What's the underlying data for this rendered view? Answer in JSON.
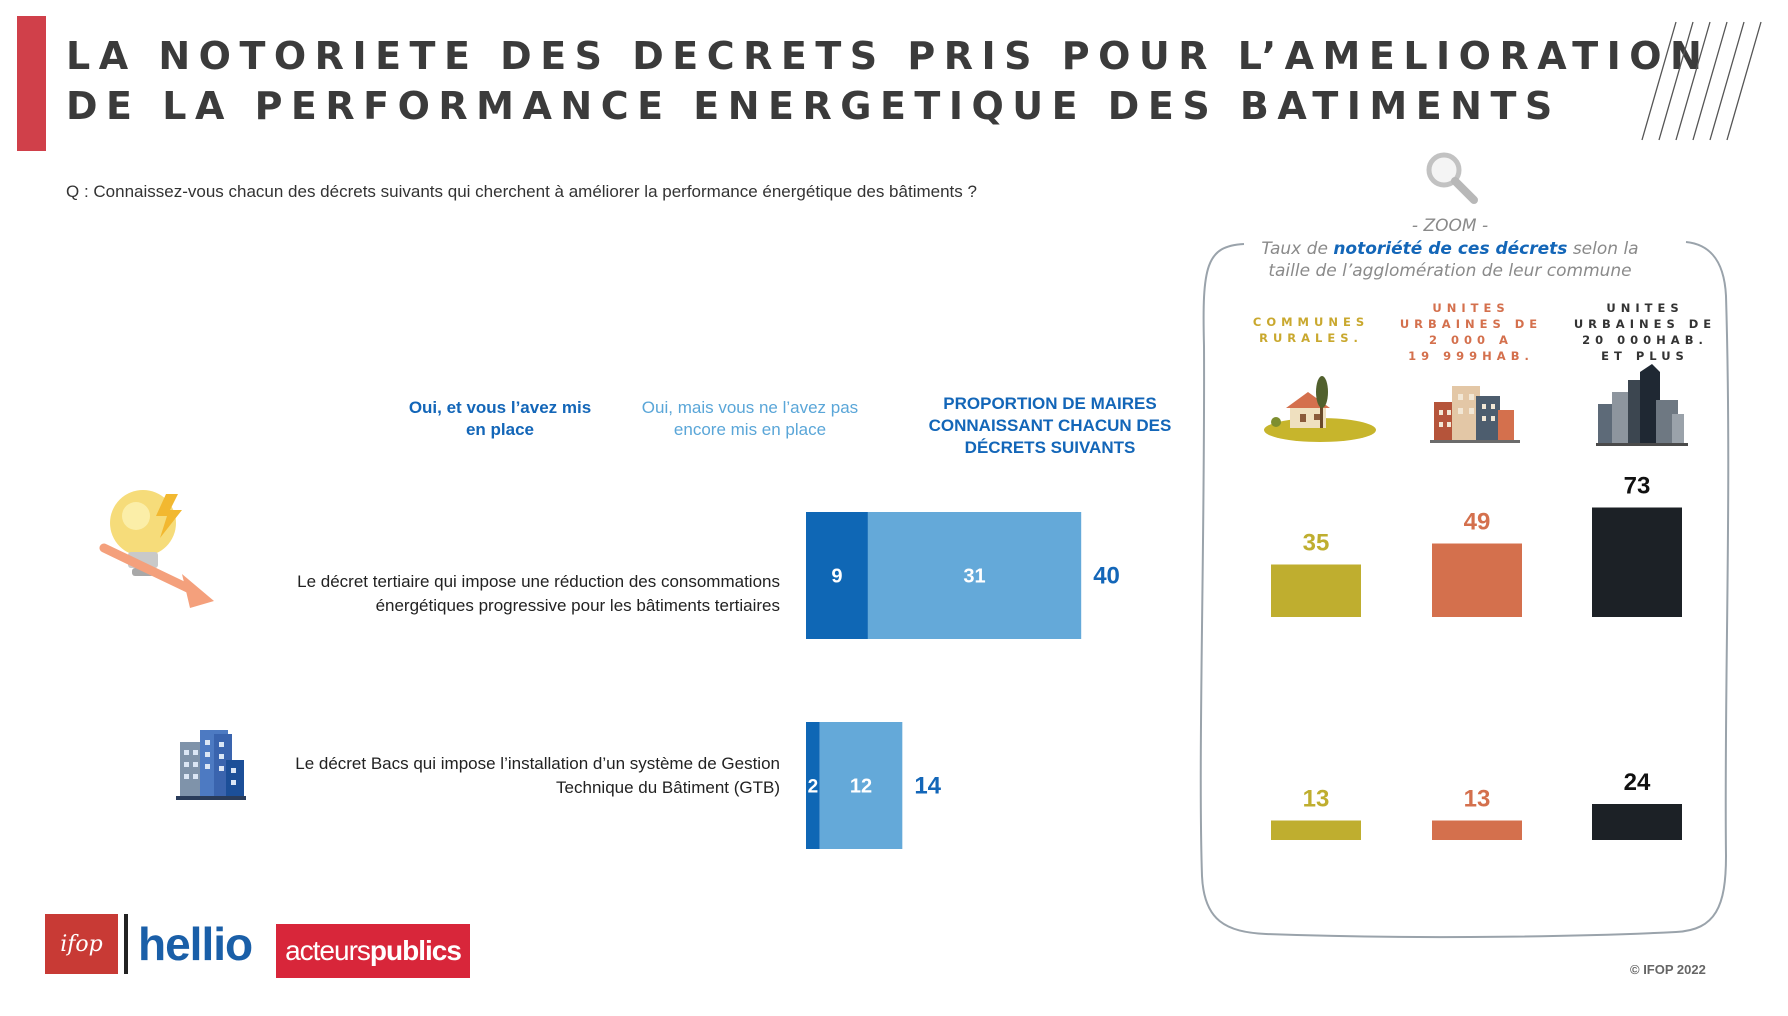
{
  "header": {
    "title_line1": "LA NOTORIETE DES DECRETS PRIS POUR L’AMELIORATION",
    "title_line2": "DE LA PERFORMANCE ENERGETIQUE DES BATIMENTS"
  },
  "question": "Q : Connaissez-vous chacun des décrets suivants qui cherchent à améliorer la performance énergétique des bâtiments ?",
  "columns": {
    "col1": "Oui, et vous l’avez mis en place",
    "col2": "Oui, mais vous ne l’avez pas encore mis en place",
    "col3": "PROPORTION DE MAIRES CONNAISSANT CHACUN DES DÉCRETS SUIVANTS"
  },
  "rows": [
    {
      "label_line1": "Le décret tertiaire qui impose une réduction des consommations",
      "label_line2": "énergétiques progressive pour les bâtiments tertiaires",
      "icon": "lightbulb-icon"
    },
    {
      "label_line1": "Le décret Bacs qui impose l’installation d’un système de Gestion",
      "label_line2": "Technique du Bâtiment (GTB)",
      "icon": "buildings-icon"
    }
  ],
  "zoom": {
    "label": "- ZOOM -",
    "subtitle_pre": "Taux de ",
    "subtitle_bold": "notoriété de ces décrets",
    "subtitle_post": " selon la",
    "subtitle_line2": "taille de l’agglomération de leur commune",
    "groups": [
      {
        "name": "COMMUNES\nRURALES.",
        "color": "#bfae2f",
        "icon": "village-house-icon"
      },
      {
        "name": "UNITES\nURBAINES DE\n2 000 A\n19 999HAB.",
        "color": "#d4704d",
        "icon": "town-buildings-icon"
      },
      {
        "name": "UNITES\nURBAINES DE\n20 000HAB.\nET PLUS",
        "color": "#1c2126",
        "icon": "city-skyline-icon"
      }
    ]
  },
  "footer": {
    "ifop": "ifop",
    "hellio": "hellio",
    "ap_pre": "acteurs",
    "ap_bold": "publics",
    "copyright": "© IFOP 2022"
  },
  "chart_data": [
    {
      "type": "bar",
      "orientation": "horizontal-stacked",
      "categories": [
        "Le décret tertiaire",
        "Le décret Bacs"
      ],
      "series": [
        {
          "name": "Oui, et vous l’avez mis en place",
          "color": "#0f67b5",
          "values": [
            9,
            2
          ]
        },
        {
          "name": "Oui, mais vous ne l’avez pas encore mis en place",
          "color": "#64a9d9",
          "values": [
            31,
            12
          ]
        }
      ],
      "totals": [
        40,
        14
      ],
      "total_label": "PROPORTION DE MAIRES CONNAISSANT CHACUN DES DÉCRETS SUIVANTS"
    },
    {
      "type": "bar",
      "title": "Taux de notoriété de ces décrets selon la taille de l’agglomération de leur commune",
      "categories": [
        "COMMUNES RURALES.",
        "UNITES URBAINES DE 2 000 A 19 999HAB.",
        "UNITES URBAINES DE 20 000HAB. ET PLUS"
      ],
      "series": [
        {
          "name": "Le décret tertiaire",
          "values": [
            35,
            49,
            73
          ]
        },
        {
          "name": "Le décret Bacs",
          "values": [
            13,
            13,
            24
          ]
        }
      ],
      "colors": [
        "#bfae2f",
        "#d4704d",
        "#1c2126"
      ],
      "ylim": [
        0,
        73
      ]
    }
  ]
}
